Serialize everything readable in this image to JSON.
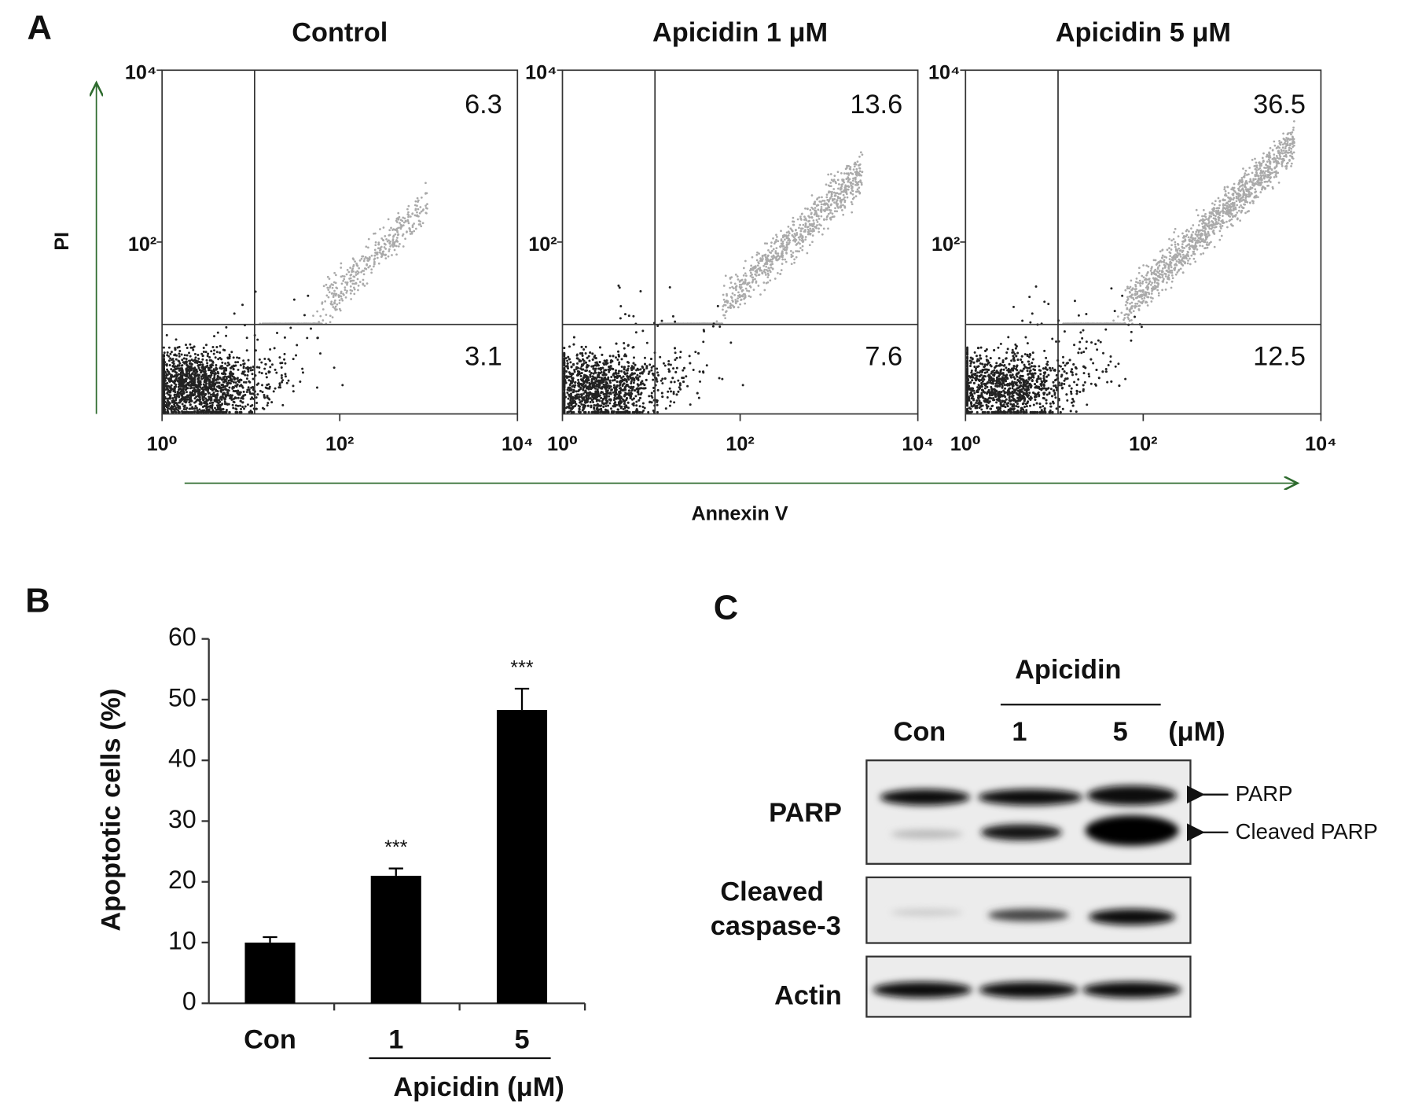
{
  "chart_data": [
    {
      "type": "flow",
      "panel": "A",
      "title": "Control",
      "xlabel": "Annexin V",
      "ylabel": "PI",
      "log_scale": true,
      "xlim": [
        1,
        10000
      ],
      "ylim": [
        1,
        10000
      ],
      "xticks": [
        {
          "value": 1,
          "label": "10⁰"
        },
        {
          "value": 100,
          "label": "10²"
        },
        {
          "value": 10000,
          "label": "10⁴"
        }
      ],
      "yticks": [
        {
          "value": 100,
          "label": "10²"
        },
        {
          "value": 10000,
          "label": "10⁴"
        }
      ],
      "gate_x": 11,
      "gate_y": 11,
      "upper_right": 6.3,
      "lower_right": 3.1
    },
    {
      "type": "flow",
      "title": "Apicidin 1 μM",
      "log_scale": true,
      "xlim": [
        1,
        10000
      ],
      "ylim": [
        1,
        10000
      ],
      "xticks": [
        {
          "value": 1,
          "label": "10⁰"
        },
        {
          "value": 100,
          "label": "10²"
        },
        {
          "value": 10000,
          "label": "10⁴"
        }
      ],
      "yticks": [
        {
          "value": 100,
          "label": "10²"
        },
        {
          "value": 10000,
          "label": "10⁴"
        }
      ],
      "gate_x": 11,
      "gate_y": 11,
      "upper_right": 13.6,
      "lower_right": 7.6
    },
    {
      "type": "flow",
      "title": "Apicidin 5 μM",
      "log_scale": true,
      "xlim": [
        1,
        10000
      ],
      "ylim": [
        1,
        10000
      ],
      "xticks": [
        {
          "value": 1,
          "label": "10⁰"
        },
        {
          "value": 100,
          "label": "10²"
        },
        {
          "value": 10000,
          "label": "10⁴"
        }
      ],
      "yticks": [
        {
          "value": 100,
          "label": "10²"
        },
        {
          "value": 10000,
          "label": "10⁴"
        }
      ],
      "gate_x": 11,
      "gate_y": 11,
      "upper_right": 36.5,
      "lower_right": 12.5
    },
    {
      "type": "bar",
      "panel": "B",
      "ylabel": "Apoptotic cells (%)",
      "xlabel": "Apicidin (μM)",
      "categories": [
        "Con",
        "1",
        "5"
      ],
      "values": [
        10,
        21,
        48.3
      ],
      "errors": [
        0.9,
        1.2,
        3.5
      ],
      "significance": [
        null,
        "***",
        "***"
      ],
      "color": "#000000",
      "ylim": [
        0,
        60
      ],
      "yticks": [
        0,
        10,
        20,
        30,
        40,
        50,
        60
      ]
    }
  ],
  "western_blot": {
    "panel": "C",
    "group_label": "Apicidin",
    "lanes": [
      "Con",
      "1",
      "5"
    ],
    "unit": "(μM)",
    "rows": [
      {
        "label": [
          "PARP"
        ]
      },
      {
        "label": [
          "Cleaved",
          "caspase-3"
        ]
      },
      {
        "label": [
          "Actin"
        ]
      }
    ],
    "arrows": [
      "PARP",
      "Cleaved PARP"
    ]
  }
}
